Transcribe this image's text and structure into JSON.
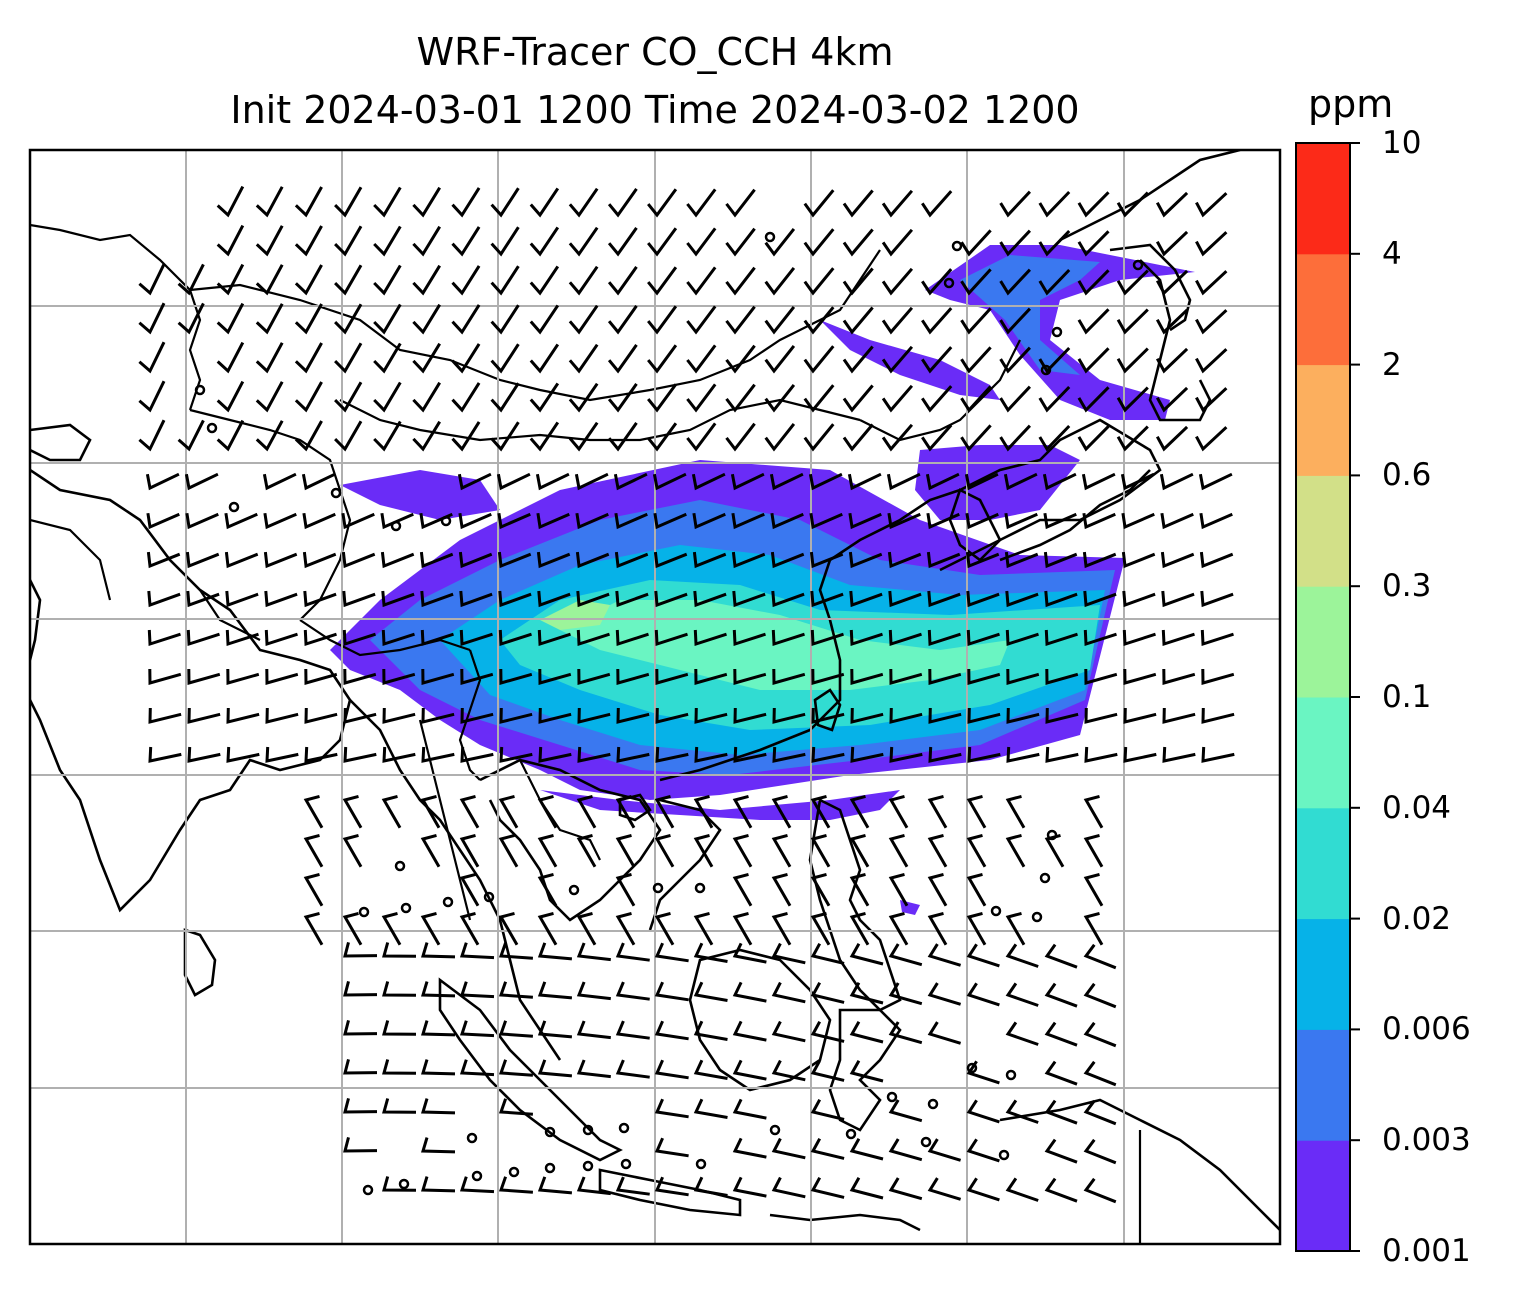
{
  "title": {
    "line1": "WRF-Tracer CO_CCH 4km",
    "line2": "Init 2024-03-01 1200 Time 2024-03-02 1200"
  },
  "colorbar": {
    "unit": "ppm",
    "levels": [
      "0.001",
      "0.003",
      "0.006",
      "0.02",
      "0.04",
      "0.1",
      "0.3",
      "0.6",
      "2",
      "4",
      "10"
    ],
    "colors": [
      "#6a2cf7",
      "#3a78f0",
      "#06b2e8",
      "#31dcd2",
      "#6af5c2",
      "#9cf49a",
      "#d2e088",
      "#fcaf5e",
      "#fd6e3a",
      "#fc2a18"
    ]
  },
  "map": {
    "gridlines": true,
    "features": [
      "coastlines",
      "country-borders",
      "wind-barbs",
      "tracer-concentration"
    ]
  }
}
